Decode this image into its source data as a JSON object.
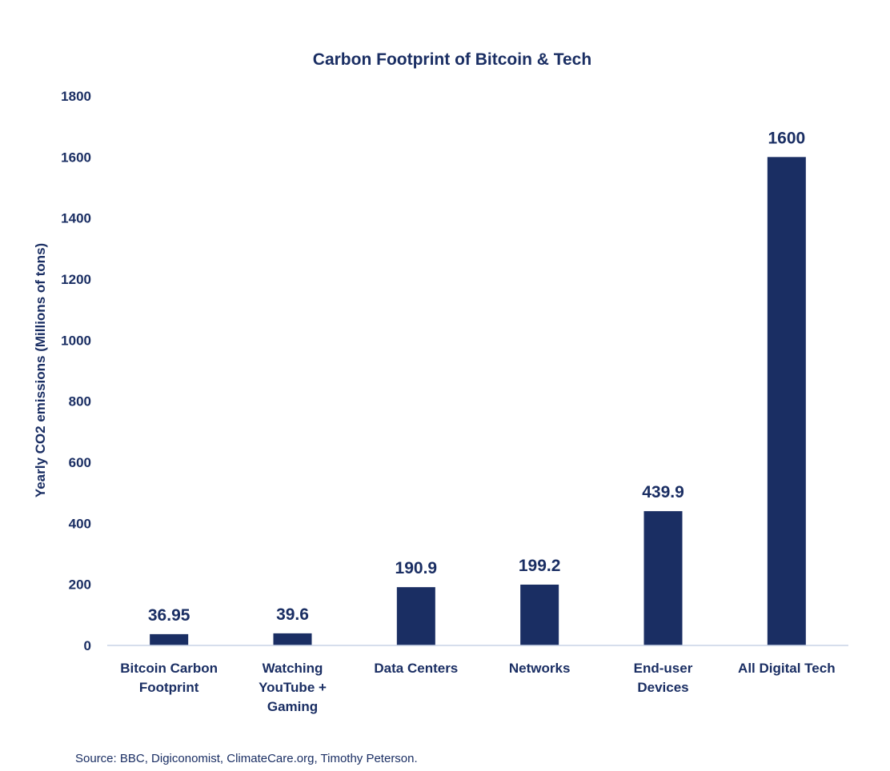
{
  "chart_data": {
    "type": "bar",
    "title": "Carbon Footprint of Bitcoin & Tech",
    "ylabel": "Yearly CO2 emissions (Millions of tons)",
    "xlabel": "",
    "ylim": [
      0,
      1800
    ],
    "yticks": [
      0,
      200,
      400,
      600,
      800,
      1000,
      1200,
      1400,
      1600,
      1800
    ],
    "categories": [
      [
        "Bitcoin Carbon",
        "Footprint"
      ],
      [
        "Watching",
        "YouTube +",
        "Gaming"
      ],
      [
        "Data Centers"
      ],
      [
        "Networks"
      ],
      [
        "End-user",
        "Devices"
      ],
      [
        "All Digital Tech"
      ]
    ],
    "values": [
      36.95,
      39.6,
      190.9,
      199.2,
      439.9,
      1600
    ],
    "value_labels": [
      "36.95",
      "39.6",
      "190.9",
      "199.2",
      "439.9",
      "1600"
    ],
    "bar_color": "#1a2e63",
    "axis_color": "#c9d3e6",
    "grid": false,
    "legend": "none"
  },
  "source_note": "Source: BBC, Digiconomist, ClimateCare.org, Timothy Peterson."
}
